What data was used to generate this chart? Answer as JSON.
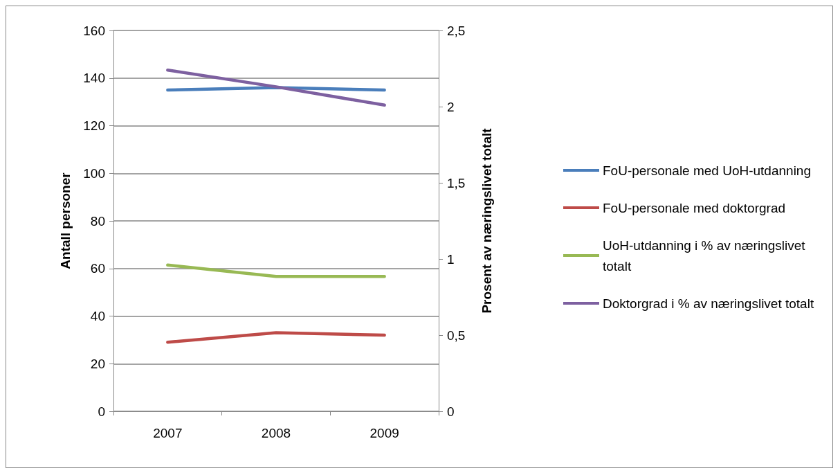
{
  "chart_data": {
    "type": "line",
    "categories": [
      "2007",
      "2008",
      "2009"
    ],
    "ylabel": "Antall personer",
    "y2label": "Prosent av næringslivet totalt",
    "ylim": [
      0,
      160
    ],
    "yticks": [
      0,
      20,
      40,
      60,
      80,
      100,
      120,
      140,
      160
    ],
    "y2lim": [
      0,
      2.5
    ],
    "y2ticks": [
      0,
      {
        "value": 0.5,
        "label": "0,5"
      },
      1,
      {
        "value": 1.5,
        "label": "1,5"
      },
      2,
      {
        "value": 2.5,
        "label": "2,5"
      }
    ],
    "grid": "y",
    "legend": "right",
    "marker": "none",
    "line_style": "solid",
    "series": [
      {
        "name": "FoU-personale med UoH-utdanning",
        "color": "#4a7ebb",
        "values": [
          135,
          136,
          135
        ]
      },
      {
        "name": "FoU-personale med doktorgrad",
        "color": "#be4b48",
        "values": [
          29,
          33,
          32
        ]
      },
      {
        "name": "UoH-utdanning i % av næringslivet totalt",
        "color": "#98b954",
        "values": [
          0.96,
          0.885,
          0.885
        ],
        "axis": "y2"
      },
      {
        "name": "Doktorgrad i % av næringslivet totalt",
        "color": "#7d60a0",
        "values": [
          2.24,
          2.13,
          2.01
        ],
        "axis": "y2"
      }
    ]
  }
}
